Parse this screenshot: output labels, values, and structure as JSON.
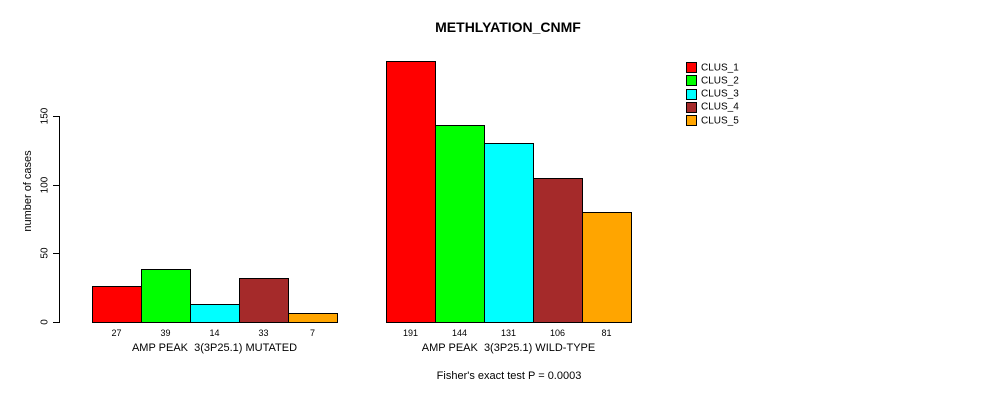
{
  "chart_data": {
    "type": "bar",
    "title": "METHLYATION_CNMF",
    "ylabel": "number of cases",
    "xlabel": "",
    "footer": "Fisher's exact test P = 0.0003",
    "yticks": [
      0,
      50,
      100,
      150
    ],
    "ylim": [
      0,
      195
    ],
    "grid": false,
    "legend_position": "right",
    "series": [
      {
        "name": "CLUS_1",
        "color": "#FF0000"
      },
      {
        "name": "CLUS_2",
        "color": "#00FF00"
      },
      {
        "name": "CLUS_3",
        "color": "#00FFFF"
      },
      {
        "name": "CLUS_4",
        "color": "#A52A2A"
      },
      {
        "name": "CLUS_5",
        "color": "#FFA500"
      }
    ],
    "groups": [
      {
        "label": "AMP PEAK  3(3P25.1) MUTATED",
        "values": [
          27,
          39,
          14,
          33,
          7
        ]
      },
      {
        "label": "AMP PEAK  3(3P25.1) WILD-TYPE",
        "values": [
          191,
          144,
          131,
          106,
          81
        ]
      }
    ]
  }
}
